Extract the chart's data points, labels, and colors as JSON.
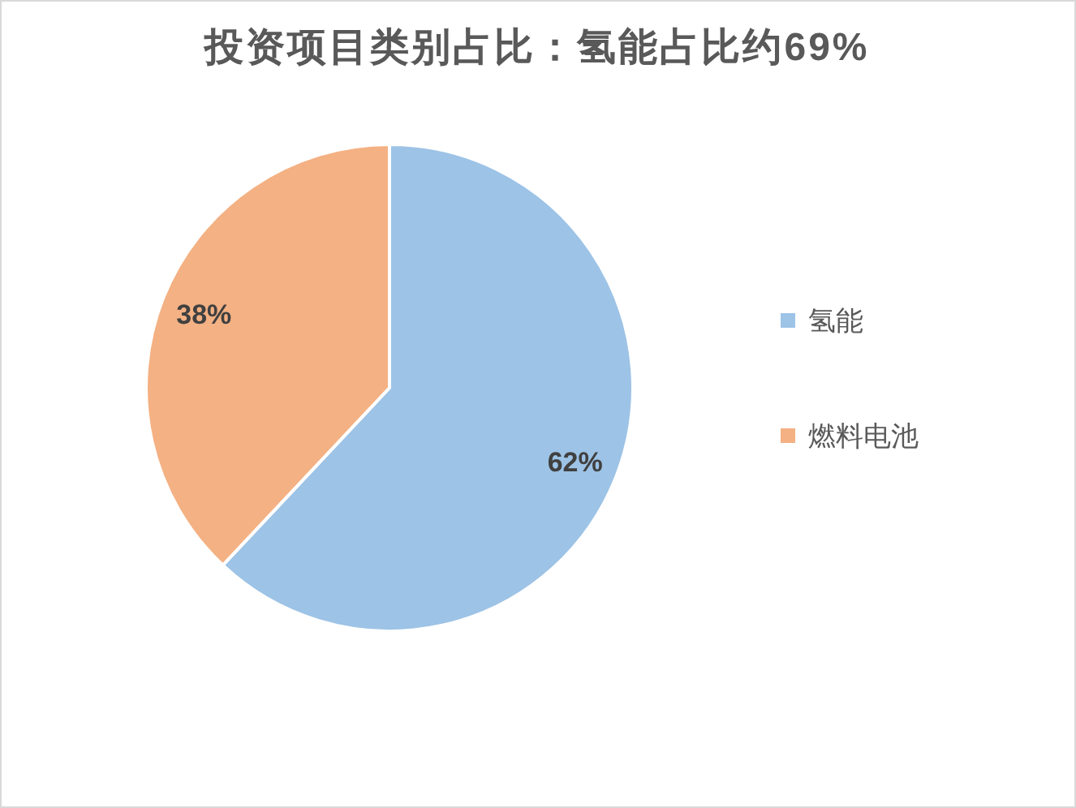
{
  "chart_data": {
    "type": "pie",
    "title": "投资项目类别占比：氢能占比约69%",
    "categories": [
      "氢能",
      "燃料电池"
    ],
    "values": [
      62,
      38
    ],
    "colors": [
      "#9dc3e6",
      "#f4b183"
    ],
    "value_labels": [
      "62%",
      "38%"
    ],
    "legend": "right"
  }
}
